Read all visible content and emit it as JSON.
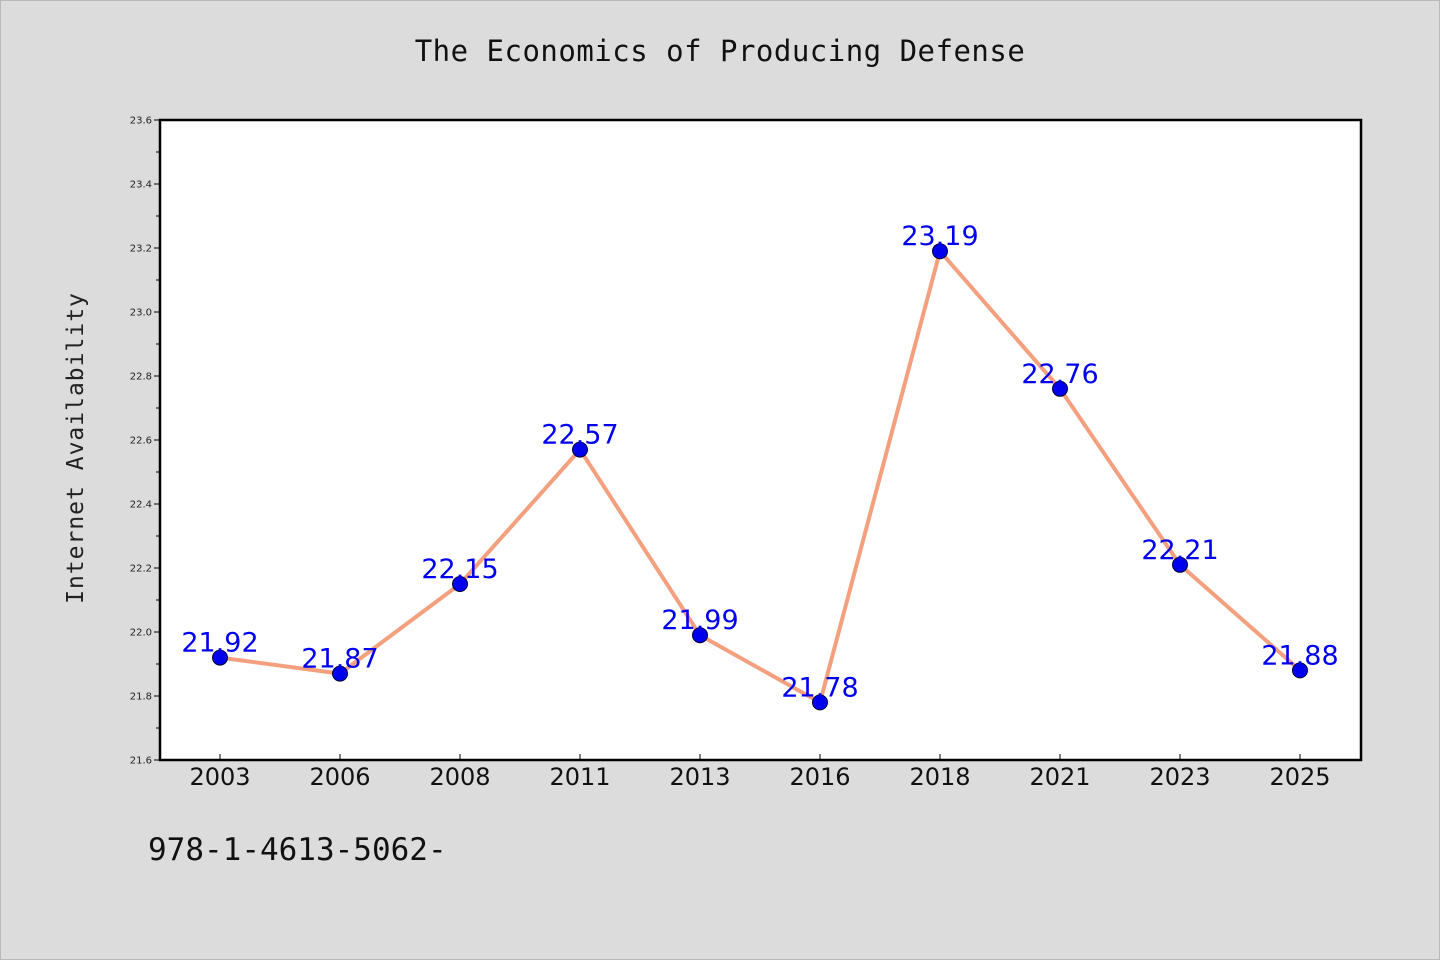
{
  "footer": {
    "code": "978-1-4613-5062-"
  },
  "colors": {
    "line": "#f4a07e",
    "marker": "#0000ee",
    "data_label": "#0000ee",
    "plot_background": "#ffffff",
    "page_background": "#dcdcdc"
  },
  "chart_data": {
    "type": "line",
    "title": "The Economics of Producing Defense",
    "xlabel": "",
    "ylabel": "Internet Availability",
    "categories": [
      "2003",
      "2006",
      "2008",
      "2011",
      "2013",
      "2016",
      "2018",
      "2021",
      "2023",
      "2025"
    ],
    "series": [
      {
        "values": [
          21.92,
          21.87,
          22.15,
          22.57,
          21.99,
          21.78,
          23.19,
          22.76,
          22.21,
          21.88
        ],
        "labels": [
          "21.92",
          "21.87",
          "22.15",
          "22.57",
          "21.99",
          "21.78",
          "23.19",
          "22.76",
          "22.21",
          "21.88"
        ]
      }
    ],
    "ylim": [
      21.6,
      23.6
    ],
    "yticks": [
      "21.6",
      "21.8",
      "22.0",
      "22.2",
      "22.4",
      "22.6",
      "22.8",
      "23.0",
      "23.2",
      "23.4",
      "23.6"
    ],
    "grid": false,
    "legend": "none"
  }
}
